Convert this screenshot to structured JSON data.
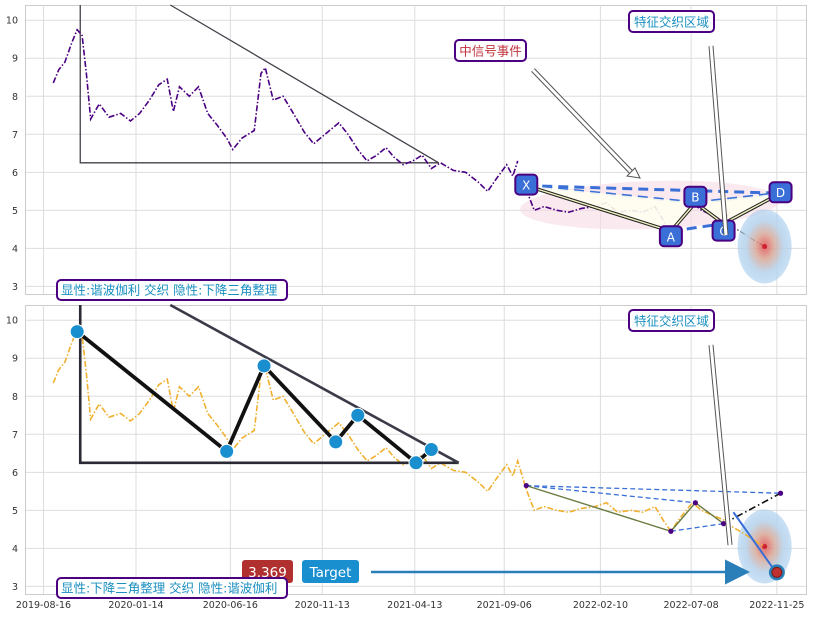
{
  "chart_data": [
    {
      "type": "line",
      "panel": "top",
      "ylim": [
        2.8,
        10.4
      ],
      "yticks": [
        3,
        4,
        5,
        6,
        7,
        8,
        9,
        10
      ],
      "grid": true,
      "series": [
        {
          "style": "dash-dot",
          "color": "#4b0082",
          "points": [
            [
              "2019-09-01",
              8.35
            ],
            [
              "2019-09-10",
              8.7
            ],
            [
              "2019-09-20",
              8.9
            ],
            [
              "2019-10-01",
              9.4
            ],
            [
              "2019-10-10",
              9.75
            ],
            [
              "2019-10-18",
              9.6
            ],
            [
              "2019-10-25",
              8.6
            ],
            [
              "2019-11-01",
              7.4
            ],
            [
              "2019-11-15",
              7.8
            ],
            [
              "2019-12-01",
              7.45
            ],
            [
              "2019-12-20",
              7.55
            ],
            [
              "2020-01-05",
              7.35
            ],
            [
              "2020-01-20",
              7.55
            ],
            [
              "2020-02-05",
              7.9
            ],
            [
              "2020-02-20",
              8.3
            ],
            [
              "2020-03-05",
              8.45
            ],
            [
              "2020-03-15",
              7.6
            ],
            [
              "2020-03-25",
              8.25
            ],
            [
              "2020-04-10",
              8.0
            ],
            [
              "2020-04-25",
              8.25
            ],
            [
              "2020-05-10",
              7.55
            ],
            [
              "2020-05-25",
              7.25
            ],
            [
              "2020-06-10",
              6.9
            ],
            [
              "2020-06-20",
              6.6
            ],
            [
              "2020-07-05",
              6.9
            ],
            [
              "2020-07-25",
              7.1
            ],
            [
              "2020-08-05",
              8.6
            ],
            [
              "2020-08-12",
              8.75
            ],
            [
              "2020-08-25",
              7.9
            ],
            [
              "2020-09-10",
              8.0
            ],
            [
              "2020-09-25",
              7.6
            ],
            [
              "2020-10-15",
              7.05
            ],
            [
              "2020-10-30",
              6.75
            ],
            [
              "2020-11-10",
              6.9
            ],
            [
              "2020-11-25",
              7.1
            ],
            [
              "2020-12-10",
              7.3
            ],
            [
              "2020-12-25",
              7.0
            ],
            [
              "2021-01-10",
              6.6
            ],
            [
              "2021-01-25",
              6.3
            ],
            [
              "2021-02-10",
              6.45
            ],
            [
              "2021-02-25",
              6.65
            ],
            [
              "2021-03-10",
              6.4
            ],
            [
              "2021-03-25",
              6.2
            ],
            [
              "2021-04-10",
              6.3
            ],
            [
              "2021-04-25",
              6.45
            ],
            [
              "2021-05-10",
              6.1
            ],
            [
              "2021-05-25",
              6.25
            ],
            [
              "2021-06-15",
              6.05
            ],
            [
              "2021-07-05",
              6.0
            ],
            [
              "2021-07-25",
              5.75
            ],
            [
              "2021-08-10",
              5.5
            ],
            [
              "2021-08-25",
              5.85
            ],
            [
              "2021-09-10",
              6.2
            ],
            [
              "2021-09-20",
              5.9
            ],
            [
              "2021-09-28",
              6.3
            ]
          ]
        },
        {
          "style": "dash-dot",
          "color": "#4b0082",
          "points": [
            [
              "2021-10-12",
              5.55
            ],
            [
              "2021-10-25",
              5.0
            ],
            [
              "2021-11-10",
              5.1
            ],
            [
              "2021-12-01",
              5.0
            ],
            [
              "2021-12-20",
              4.95
            ],
            [
              "2022-01-10",
              5.05
            ],
            [
              "2022-02-01",
              5.1
            ],
            [
              "2022-02-20",
              5.2
            ],
            [
              "2022-03-10",
              4.95
            ],
            [
              "2022-04-01",
              5.0
            ],
            [
              "2022-04-20",
              4.95
            ],
            [
              "2022-05-10",
              5.1
            ],
            [
              "2022-05-25",
              4.7
            ],
            [
              "2022-06-05",
              4.45
            ],
            [
              "2022-06-20",
              4.8
            ],
            [
              "2022-07-10",
              5.2
            ],
            [
              "2022-07-25",
              5.0
            ],
            [
              "2022-08-15",
              4.85
            ],
            [
              "2022-08-30",
              4.75
            ],
            [
              "2022-09-10",
              4.95
            ]
          ]
        },
        {
          "style": "dash-dot",
          "color": "#000000",
          "points": [
            [
              "2022-09-10",
              4.6
            ],
            [
              "2022-10-01",
              4.4
            ],
            [
              "2022-10-20",
              4.2
            ],
            [
              "2022-11-05",
              4.05
            ]
          ]
        }
      ],
      "triangle": [
        [
          "2019-10-15",
          10.4
        ],
        [
          "2019-10-15",
          6.25
        ],
        [
          "2021-05-22",
          6.25
        ],
        [
          "2020-03-10",
          10.4
        ]
      ],
      "xabcd": {
        "X": [
          "2021-10-12",
          5.65
        ],
        "A": [
          "2022-06-05",
          4.45
        ],
        "B": [
          "2022-07-15",
          5.2
        ],
        "C": [
          "2022-08-30",
          4.65
        ],
        "D": [
          "2022-12-01",
          5.45
        ]
      },
      "labels": {
        "X": "X",
        "A": "A",
        "B": "B",
        "C": "C",
        "D": "D",
        "event": "中信号事件",
        "zone": "特征交织区域",
        "footer": "显性:谐波伽利 交织 隐性:下降三角整理"
      }
    },
    {
      "type": "line",
      "panel": "bottom",
      "ylim": [
        2.8,
        10.4
      ],
      "yticks": [
        3,
        4,
        5,
        6,
        7,
        8,
        9,
        10
      ],
      "grid": true,
      "series": [
        {
          "style": "dash-dot",
          "color": "#f0b030",
          "points": [
            [
              "2019-09-01",
              8.35
            ],
            [
              "2019-09-10",
              8.7
            ],
            [
              "2019-09-20",
              8.9
            ],
            [
              "2019-10-01",
              9.4
            ],
            [
              "2019-10-10",
              9.75
            ],
            [
              "2019-10-18",
              9.6
            ],
            [
              "2019-10-25",
              8.6
            ],
            [
              "2019-11-01",
              7.4
            ],
            [
              "2019-11-15",
              7.8
            ],
            [
              "2019-12-01",
              7.45
            ],
            [
              "2019-12-20",
              7.55
            ],
            [
              "2020-01-05",
              7.35
            ],
            [
              "2020-01-20",
              7.55
            ],
            [
              "2020-02-05",
              7.9
            ],
            [
              "2020-02-20",
              8.3
            ],
            [
              "2020-03-05",
              8.45
            ],
            [
              "2020-03-15",
              7.6
            ],
            [
              "2020-03-25",
              8.25
            ],
            [
              "2020-04-10",
              8.0
            ],
            [
              "2020-04-25",
              8.25
            ],
            [
              "2020-05-10",
              7.55
            ],
            [
              "2020-05-25",
              7.25
            ],
            [
              "2020-06-10",
              6.9
            ],
            [
              "2020-06-20",
              6.6
            ],
            [
              "2020-07-05",
              6.9
            ],
            [
              "2020-07-25",
              7.1
            ],
            [
              "2020-08-05",
              8.6
            ],
            [
              "2020-08-12",
              8.75
            ],
            [
              "2020-08-25",
              7.9
            ],
            [
              "2020-09-10",
              8.0
            ],
            [
              "2020-09-25",
              7.6
            ],
            [
              "2020-10-15",
              7.05
            ],
            [
              "2020-10-30",
              6.75
            ],
            [
              "2020-11-10",
              6.9
            ],
            [
              "2020-11-25",
              7.1
            ],
            [
              "2020-12-10",
              7.3
            ],
            [
              "2020-12-25",
              7.0
            ],
            [
              "2021-01-10",
              6.6
            ],
            [
              "2021-01-25",
              6.3
            ],
            [
              "2021-02-10",
              6.45
            ],
            [
              "2021-02-25",
              6.65
            ],
            [
              "2021-03-10",
              6.4
            ],
            [
              "2021-03-25",
              6.2
            ],
            [
              "2021-04-10",
              6.3
            ],
            [
              "2021-04-25",
              6.45
            ],
            [
              "2021-05-10",
              6.1
            ],
            [
              "2021-05-25",
              6.25
            ],
            [
              "2021-06-15",
              6.05
            ],
            [
              "2021-07-05",
              6.0
            ],
            [
              "2021-07-25",
              5.75
            ],
            [
              "2021-08-10",
              5.5
            ],
            [
              "2021-08-25",
              5.85
            ],
            [
              "2021-09-10",
              6.2
            ],
            [
              "2021-09-20",
              5.9
            ],
            [
              "2021-09-28",
              6.3
            ],
            [
              "2021-10-12",
              5.55
            ],
            [
              "2021-10-25",
              5.0
            ],
            [
              "2021-11-10",
              5.1
            ],
            [
              "2021-12-01",
              5.0
            ],
            [
              "2021-12-20",
              4.95
            ],
            [
              "2022-01-10",
              5.05
            ],
            [
              "2022-02-01",
              5.1
            ],
            [
              "2022-02-20",
              5.2
            ],
            [
              "2022-03-10",
              4.95
            ],
            [
              "2022-04-01",
              5.0
            ],
            [
              "2022-04-20",
              4.95
            ],
            [
              "2022-05-10",
              5.1
            ],
            [
              "2022-05-25",
              4.7
            ],
            [
              "2022-06-05",
              4.45
            ],
            [
              "2022-06-20",
              4.8
            ],
            [
              "2022-07-10",
              5.2
            ],
            [
              "2022-07-25",
              5.0
            ],
            [
              "2022-08-15",
              4.85
            ],
            [
              "2022-08-30",
              4.75
            ],
            [
              "2022-09-10",
              4.6
            ],
            [
              "2022-10-01",
              4.4
            ],
            [
              "2022-10-20",
              4.2
            ],
            [
              "2022-11-05",
              4.05
            ]
          ]
        }
      ],
      "triangle_pivots": [
        [
          "2019-10-10",
          9.7
        ],
        [
          "2020-06-10",
          6.55
        ],
        [
          "2020-08-10",
          8.8
        ],
        [
          "2020-12-05",
          6.8
        ],
        [
          "2021-01-10",
          7.5
        ],
        [
          "2021-04-15",
          6.25
        ],
        [
          "2021-05-10",
          6.6
        ]
      ],
      "xabcd": {
        "X": [
          "2021-10-12",
          5.65
        ],
        "A": [
          "2022-06-05",
          4.45
        ],
        "B": [
          "2022-07-15",
          5.2
        ],
        "C": [
          "2022-08-30",
          4.65
        ],
        "D": [
          "2022-12-01",
          5.45
        ]
      },
      "target": {
        "date": "2022-11-25",
        "value": 3.369
      },
      "labels": {
        "zone": "特征交织区域",
        "target_value": "3.369",
        "target": "Target",
        "footer": "显性:下降三角整理 交织 隐性:谐波伽利"
      },
      "xticks": [
        "2019-08-16",
        "2020-01-14",
        "2020-06-16",
        "2020-11-13",
        "2021-04-13",
        "2021-09-06",
        "2022-02-10",
        "2022-07-08",
        "2022-11-25"
      ]
    }
  ]
}
